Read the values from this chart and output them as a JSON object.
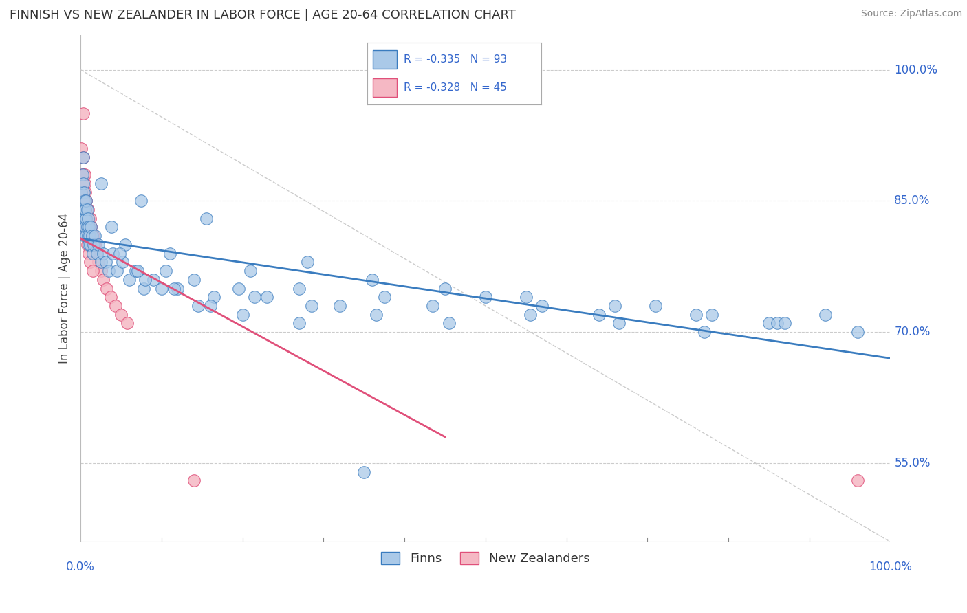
{
  "title": "FINNISH VS NEW ZEALANDER IN LABOR FORCE | AGE 20-64 CORRELATION CHART",
  "source": "Source: ZipAtlas.com",
  "ylabel": "In Labor Force | Age 20-64",
  "y_tick_labels": [
    "55.0%",
    "70.0%",
    "85.0%",
    "100.0%"
  ],
  "y_tick_vals": [
    0.55,
    0.7,
    0.85,
    1.0
  ],
  "xlim": [
    0.0,
    1.0
  ],
  "ylim": [
    0.46,
    1.04
  ],
  "legend_r1": "R = -0.335   N = 93",
  "legend_r2": "R = -0.328   N = 45",
  "finns_color": "#aac9e8",
  "nz_color": "#f5b8c4",
  "finn_line_color": "#3a7cbf",
  "nz_line_color": "#e0507a",
  "background_color": "#ffffff",
  "grid_color": "#cccccc",
  "finns_x": [
    0.001,
    0.002,
    0.002,
    0.003,
    0.003,
    0.003,
    0.004,
    0.004,
    0.004,
    0.005,
    0.005,
    0.005,
    0.006,
    0.006,
    0.007,
    0.007,
    0.007,
    0.008,
    0.008,
    0.009,
    0.009,
    0.01,
    0.01,
    0.011,
    0.012,
    0.013,
    0.014,
    0.015,
    0.016,
    0.018,
    0.02,
    0.022,
    0.025,
    0.028,
    0.031,
    0.035,
    0.04,
    0.045,
    0.052,
    0.06,
    0.068,
    0.078,
    0.09,
    0.105,
    0.12,
    0.14,
    0.165,
    0.195,
    0.23,
    0.27,
    0.32,
    0.375,
    0.435,
    0.5,
    0.57,
    0.64,
    0.71,
    0.78,
    0.85,
    0.92,
    0.075,
    0.11,
    0.155,
    0.21,
    0.28,
    0.36,
    0.45,
    0.55,
    0.66,
    0.76,
    0.86,
    0.025,
    0.038,
    0.055,
    0.08,
    0.115,
    0.16,
    0.215,
    0.285,
    0.365,
    0.455,
    0.555,
    0.665,
    0.77,
    0.87,
    0.96,
    0.048,
    0.07,
    0.1,
    0.145,
    0.2,
    0.27,
    0.35
  ],
  "finns_y": [
    0.86,
    0.88,
    0.84,
    0.9,
    0.87,
    0.83,
    0.86,
    0.84,
    0.82,
    0.85,
    0.83,
    0.81,
    0.84,
    0.82,
    0.83,
    0.85,
    0.81,
    0.84,
    0.82,
    0.83,
    0.81,
    0.82,
    0.8,
    0.81,
    0.8,
    0.82,
    0.81,
    0.79,
    0.8,
    0.81,
    0.79,
    0.8,
    0.78,
    0.79,
    0.78,
    0.77,
    0.79,
    0.77,
    0.78,
    0.76,
    0.77,
    0.75,
    0.76,
    0.77,
    0.75,
    0.76,
    0.74,
    0.75,
    0.74,
    0.75,
    0.73,
    0.74,
    0.73,
    0.74,
    0.73,
    0.72,
    0.73,
    0.72,
    0.71,
    0.72,
    0.85,
    0.79,
    0.83,
    0.77,
    0.78,
    0.76,
    0.75,
    0.74,
    0.73,
    0.72,
    0.71,
    0.87,
    0.82,
    0.8,
    0.76,
    0.75,
    0.73,
    0.74,
    0.73,
    0.72,
    0.71,
    0.72,
    0.71,
    0.7,
    0.71,
    0.7,
    0.79,
    0.77,
    0.75,
    0.73,
    0.72,
    0.71,
    0.54
  ],
  "nz_x": [
    0.001,
    0.002,
    0.002,
    0.003,
    0.003,
    0.004,
    0.004,
    0.005,
    0.005,
    0.006,
    0.006,
    0.007,
    0.007,
    0.008,
    0.008,
    0.009,
    0.01,
    0.011,
    0.012,
    0.013,
    0.014,
    0.015,
    0.016,
    0.018,
    0.02,
    0.022,
    0.025,
    0.028,
    0.032,
    0.037,
    0.043,
    0.05,
    0.058,
    0.002,
    0.003,
    0.004,
    0.005,
    0.006,
    0.007,
    0.008,
    0.01,
    0.012,
    0.015,
    0.14,
    0.96
  ],
  "nz_y": [
    0.91,
    0.88,
    0.85,
    0.95,
    0.9,
    0.88,
    0.86,
    0.87,
    0.85,
    0.86,
    0.84,
    0.85,
    0.83,
    0.84,
    0.82,
    0.84,
    0.83,
    0.82,
    0.83,
    0.82,
    0.81,
    0.8,
    0.81,
    0.8,
    0.79,
    0.78,
    0.77,
    0.76,
    0.75,
    0.74,
    0.73,
    0.72,
    0.71,
    0.82,
    0.85,
    0.83,
    0.88,
    0.84,
    0.82,
    0.8,
    0.79,
    0.78,
    0.77,
    0.53,
    0.53
  ],
  "finn_regr": [
    0.0,
    1.0,
    0.807,
    0.67
  ],
  "nz_regr": [
    0.0,
    0.45,
    0.807,
    0.58
  ]
}
